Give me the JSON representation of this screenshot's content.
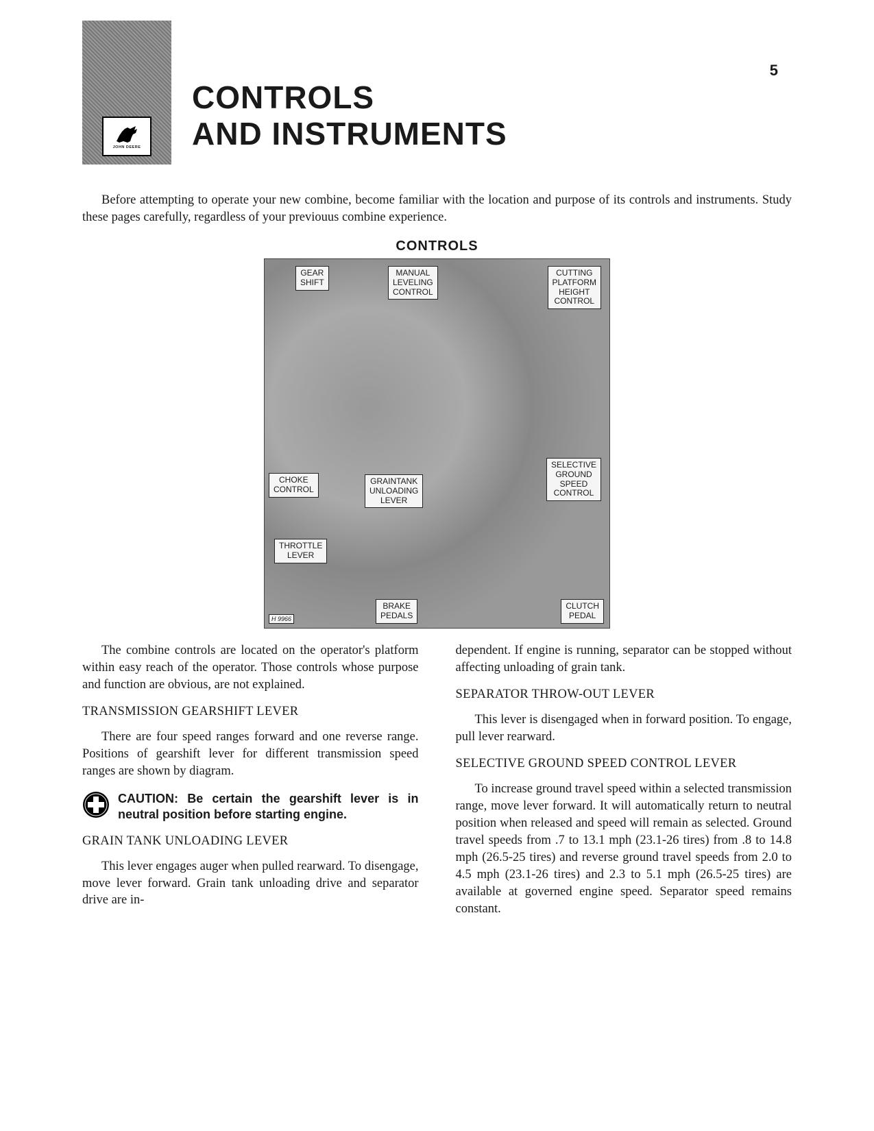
{
  "page_number": "5",
  "logo_brand": "JOHN DEERE",
  "title_line1": "CONTROLS",
  "title_line2": "AND  INSTRUMENTS",
  "intro": "Before attempting to operate your new combine, become familiar with the location and purpose of its controls and instruments. Study these pages carefully, regardless of your previouus combine experience.",
  "section_heading": "CONTROLS",
  "diagram": {
    "labels": {
      "gear_shift": "GEAR\nSHIFT",
      "manual_leveling": "MANUAL\nLEVELING\nCONTROL",
      "cutting_platform": "CUTTING\nPLATFORM\nHEIGHT\nCONTROL",
      "choke": "CHOKE\nCONTROL",
      "graintank": "GRAINTANK\nUNLOADING\nLEVER",
      "selective": "SELECTIVE\nGROUND\nSPEED\nCONTROL",
      "throttle": "THROTTLE\nLEVER",
      "brake": "BRAKE\nPEDALS",
      "clutch": "CLUTCH\nPEDAL",
      "photo_id": "H 9966"
    }
  },
  "left_column": {
    "para1": "The combine controls are located on the operator's platform within easy reach of the operator. Those controls whose purpose and function are obvious, are not explained.",
    "heading1": "TRANSMISSION GEARSHIFT LEVER",
    "para2": "There are four speed ranges forward and one reverse range. Positions of gearshift lever for different transmission speed ranges are shown by diagram.",
    "caution": "CAUTION: Be certain the gearshift lever is in neutral position before starting engine.",
    "heading2": "GRAIN TANK UNLOADING LEVER",
    "para3": "This lever engages auger when pulled rearward. To disengage, move lever forward. Grain tank unloading drive and separator drive are in-"
  },
  "right_column": {
    "para1": "dependent. If engine is running, separator can be stopped without affecting unloading of grain tank.",
    "heading1": "SEPARATOR THROW-OUT LEVER",
    "para2": "This lever is disengaged when in forward position. To engage, pull lever rearward.",
    "heading2": "SELECTIVE GROUND SPEED CONTROL LEVER",
    "para3": "To increase ground travel speed within a selected transmission range, move lever forward. It will automatically return to neutral position when released and speed will remain as selected. Ground travel speeds from .7 to 13.1 mph (23.1-26 tires) from .8 to 14.8 mph (26.5-25 tires) and reverse ground travel speeds from 2.0 to 4.5 mph (23.1-26 tires) and 2.3 to 5.1 mph (26.5-25 tires) are available at governed engine speed. Separator speed remains constant."
  }
}
